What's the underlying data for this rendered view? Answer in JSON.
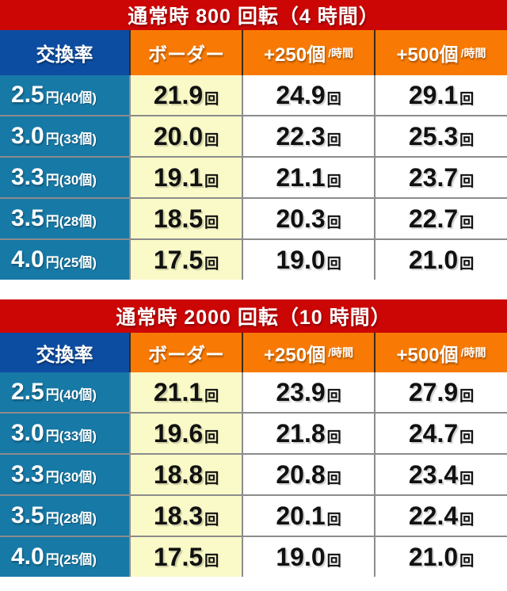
{
  "colors": {
    "title_bg": "#cc0505",
    "header_blue": "#0d4da1",
    "header_orange": "#f87a04",
    "rate_teal": "#1779a6",
    "border_yellow": "#fafac8",
    "grid_line": "#8c8c8c"
  },
  "unit_suffix": "回",
  "tables": [
    {
      "title": "通常時 800 回転（4 時間）",
      "headers": {
        "rate": "交換率",
        "border": "ボーダー",
        "plus250_main": "+250個",
        "plus250_sub": "/時間",
        "plus500_main": "+500個",
        "plus500_sub": "/時間"
      },
      "rows": [
        {
          "rate_value": "2.5",
          "rate_note": "円(40個)",
          "border": "21.9",
          "plus250": "24.9",
          "plus500": "29.1"
        },
        {
          "rate_value": "3.0",
          "rate_note": "円(33個)",
          "border": "20.0",
          "plus250": "22.3",
          "plus500": "25.3"
        },
        {
          "rate_value": "3.3",
          "rate_note": "円(30個)",
          "border": "19.1",
          "plus250": "21.1",
          "plus500": "23.7"
        },
        {
          "rate_value": "3.5",
          "rate_note": "円(28個)",
          "border": "18.5",
          "plus250": "20.3",
          "plus500": "22.7"
        },
        {
          "rate_value": "4.0",
          "rate_note": "円(25個)",
          "border": "17.5",
          "plus250": "19.0",
          "plus500": "21.0"
        }
      ]
    },
    {
      "title": "通常時 2000 回転（10 時間）",
      "headers": {
        "rate": "交換率",
        "border": "ボーダー",
        "plus250_main": "+250個",
        "plus250_sub": "/時間",
        "plus500_main": "+500個",
        "plus500_sub": "/時間"
      },
      "rows": [
        {
          "rate_value": "2.5",
          "rate_note": "円(40個)",
          "border": "21.1",
          "plus250": "23.9",
          "plus500": "27.9"
        },
        {
          "rate_value": "3.0",
          "rate_note": "円(33個)",
          "border": "19.6",
          "plus250": "21.8",
          "plus500": "24.7"
        },
        {
          "rate_value": "3.3",
          "rate_note": "円(30個)",
          "border": "18.8",
          "plus250": "20.8",
          "plus500": "23.4"
        },
        {
          "rate_value": "3.5",
          "rate_note": "円(28個)",
          "border": "18.3",
          "plus250": "20.1",
          "plus500": "22.4"
        },
        {
          "rate_value": "4.0",
          "rate_note": "円(25個)",
          "border": "17.5",
          "plus250": "19.0",
          "plus500": "21.0"
        }
      ]
    }
  ],
  "chart_data": [
    {
      "type": "table",
      "title": "通常時 800 回転（4 時間）",
      "columns": [
        "交換率",
        "ボーダー",
        "+250個/時間",
        "+500個/時間"
      ],
      "rows": [
        [
          "2.5円(40個)",
          21.9,
          24.9,
          29.1
        ],
        [
          "3.0円(33個)",
          20.0,
          22.3,
          25.3
        ],
        [
          "3.3円(30個)",
          19.1,
          21.1,
          23.7
        ],
        [
          "3.5円(28個)",
          18.5,
          20.3,
          22.7
        ],
        [
          "4.0円(25個)",
          17.5,
          19.0,
          21.0
        ]
      ],
      "value_unit": "回"
    },
    {
      "type": "table",
      "title": "通常時 2000 回転（10 時間）",
      "columns": [
        "交換率",
        "ボーダー",
        "+250個/時間",
        "+500個/時間"
      ],
      "rows": [
        [
          "2.5円(40個)",
          21.1,
          23.9,
          27.9
        ],
        [
          "3.0円(33個)",
          19.6,
          21.8,
          24.7
        ],
        [
          "3.3円(30個)",
          18.8,
          20.8,
          23.4
        ],
        [
          "3.5円(28個)",
          18.3,
          20.1,
          22.4
        ],
        [
          "4.0円(25個)",
          17.5,
          19.0,
          21.0
        ]
      ],
      "value_unit": "回"
    }
  ]
}
